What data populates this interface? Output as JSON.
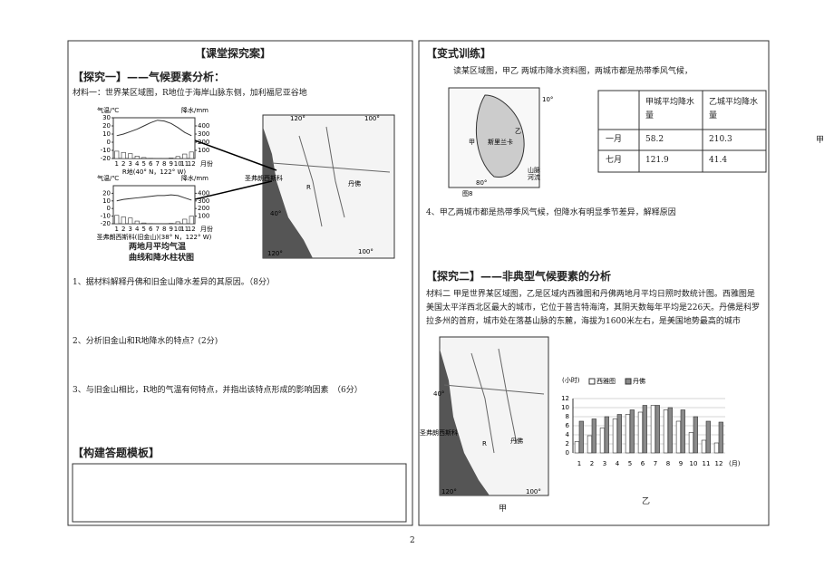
{
  "left": {
    "heading": "【课堂探究案】",
    "section1": "【探究一】——气候要素分析：",
    "material1": "材料一：世界某区域图，R地位于海岸山脉东侧，加利福尼亚谷地",
    "climate_charts": [
      {
        "label": "R地(40° N，122° W)",
        "temp_axis": "气温/℃",
        "precip_axis": "降水/mm",
        "month_axis": "月份",
        "categories": [
          "1",
          "2",
          "3",
          "4",
          "5",
          "6",
          "7",
          "8",
          "9",
          "10",
          "11",
          "12"
        ],
        "temperature": [
          8,
          10,
          13,
          16,
          20,
          24,
          27,
          26,
          23,
          18,
          12,
          8
        ],
        "precipitation": [
          90,
          75,
          60,
          30,
          12,
          3,
          1,
          1,
          6,
          25,
          55,
          80
        ],
        "templim": [
          -20,
          30
        ],
        "tempticks": [
          30,
          20,
          10,
          0,
          -10,
          -20
        ],
        "preciplim": [
          0,
          500
        ],
        "precipticks": [
          400,
          300,
          200,
          100
        ]
      },
      {
        "label": "圣弗朗西斯科(旧金山)(38° N，122° W)",
        "temp_axis": "气温/℃",
        "precip_axis": "降水/mm",
        "month_axis": "月份",
        "categories": [
          "1",
          "2",
          "3",
          "4",
          "5",
          "6",
          "7",
          "8",
          "9",
          "10",
          "11",
          "12"
        ],
        "temperature": [
          10,
          12,
          13,
          14,
          15,
          16,
          17,
          17,
          18,
          17,
          14,
          11
        ],
        "precipitation": [
          110,
          90,
          75,
          35,
          10,
          3,
          1,
          1,
          5,
          25,
          60,
          100
        ],
        "templim": [
          -20,
          30
        ],
        "tempticks": [
          20,
          10,
          0,
          -10,
          -20
        ],
        "preciplim": [
          0,
          500
        ],
        "precipticks": [
          400,
          300,
          200,
          100
        ]
      }
    ],
    "caption_line1": "两地月平均气温",
    "caption_line2": "曲线和降水柱状图",
    "map": {
      "lon1": "120°",
      "lon2": "100°",
      "lat": "40°",
      "point": "R",
      "city1": "圣弗朗西斯科",
      "city2": "丹佛",
      "lon3": "120°",
      "lon4": "100°"
    },
    "questions": [
      "1、据材料解释丹佛和旧金山降水差异的其原因。（8分）",
      "2、分析旧金山和R地降水的特点？(2分)",
      "3、与旧金山相比，R地的气温有何特点，并指出该特点形成的影响因素　（6分）"
    ],
    "template_title": "【构建答题模板】"
  },
  "right": {
    "heading": "【变式训练】",
    "intro": "读某区域图，甲乙 两城市降水资料图，两城市都是热带季风气候，",
    "srilanka_map": {
      "lat": "10°",
      "lon": "80°",
      "city1": "甲",
      "city2": "乙",
      "country": "斯里兰卡",
      "legend1": "山脉",
      "legend2": "河流",
      "fig": "图8"
    },
    "table": {
      "columns": [
        "甲城平均降水量",
        "乙城平均降水量"
      ],
      "rows": [
        [
          "一月",
          "58.2",
          "210.3"
        ],
        [
          "七月",
          "121.9",
          "41.4"
        ]
      ]
    },
    "question4": "4、甲乙两城市都是热带季风气候，但降水有明显季节差异，解释原因",
    "section2": "【探究二】——非典型气候要素的分析",
    "material2": "材料二 甲是世界某区域图，乙是区域内西雅图和丹佛两地月平均日照时数统计图。西雅图是美国太平洋西北区最大的城市，它位于普吉特海湾，其阴天数每年平均是226天。丹佛是科罗拉多州的首府，城市处在落基山脉的东麓，海拔为1600米左右，是美国地势最高的城市",
    "map": {
      "lat": "40°",
      "point": "R",
      "city1": "圣弗朗西斯科",
      "city2": "丹佛",
      "lon1": "120°",
      "lon2": "100°"
    },
    "map_label": "甲",
    "chart_label": "乙",
    "sunshine_chart": {
      "type": "bar",
      "y_unit": "(小时)",
      "x_unit": "(月)",
      "categories": [
        "1",
        "2",
        "3",
        "4",
        "5",
        "6",
        "7",
        "8",
        "9",
        "10",
        "11",
        "12"
      ],
      "series": [
        {
          "name": "西雅图",
          "color": "#ffffff",
          "values": [
            2.5,
            3.8,
            5.5,
            7.5,
            8.5,
            9,
            10.5,
            9.5,
            7,
            4.5,
            2.8,
            2.2
          ]
        },
        {
          "name": "丹佛",
          "color": "#8a8a8a",
          "values": [
            7,
            7.5,
            8,
            8.5,
            9.5,
            10.5,
            10.5,
            10,
            9.5,
            8,
            7,
            6.8
          ]
        }
      ],
      "ylim": [
        0,
        12
      ],
      "yticks": [
        0,
        2,
        4,
        6,
        8,
        10,
        12
      ]
    },
    "side_label": "甲"
  },
  "footer": {
    "page": "2"
  }
}
